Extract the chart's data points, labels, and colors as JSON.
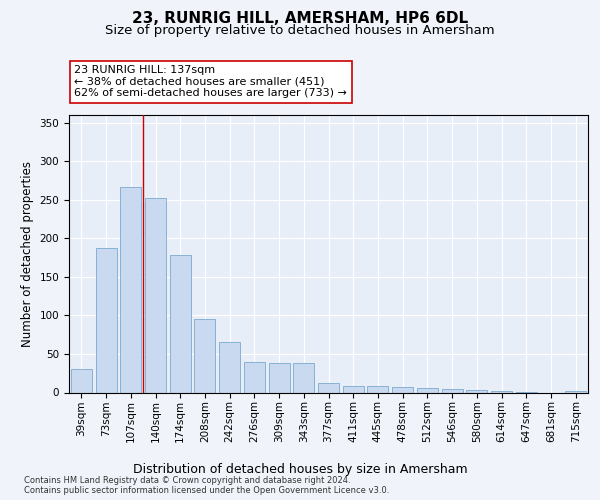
{
  "title": "23, RUNRIG HILL, AMERSHAM, HP6 6DL",
  "subtitle": "Size of property relative to detached houses in Amersham",
  "xlabel": "Distribution of detached houses by size in Amersham",
  "ylabel": "Number of detached properties",
  "bar_labels": [
    "39sqm",
    "73sqm",
    "107sqm",
    "140sqm",
    "174sqm",
    "208sqm",
    "242sqm",
    "276sqm",
    "309sqm",
    "343sqm",
    "377sqm",
    "411sqm",
    "445sqm",
    "478sqm",
    "512sqm",
    "546sqm",
    "580sqm",
    "614sqm",
    "647sqm",
    "681sqm",
    "715sqm"
  ],
  "bar_values": [
    30,
    187,
    267,
    252,
    178,
    95,
    65,
    39,
    38,
    38,
    12,
    9,
    9,
    7,
    6,
    5,
    3,
    2,
    1,
    0,
    2
  ],
  "bar_color": "#c9d9ef",
  "bar_edge_color": "#7aaad0",
  "vline_x": 2.5,
  "vline_color": "#cc0000",
  "annotation_text": "23 RUNRIG HILL: 137sqm\n← 38% of detached houses are smaller (451)\n62% of semi-detached houses are larger (733) →",
  "annotation_box_color": "#ffffff",
  "annotation_box_edge": "#cc0000",
  "ylim": [
    0,
    360
  ],
  "yticks": [
    0,
    50,
    100,
    150,
    200,
    250,
    300,
    350
  ],
  "title_fontsize": 11,
  "subtitle_fontsize": 9.5,
  "xlabel_fontsize": 9,
  "ylabel_fontsize": 8.5,
  "tick_fontsize": 7.5,
  "annotation_fontsize": 8,
  "footer_text": "Contains HM Land Registry data © Crown copyright and database right 2024.\nContains public sector information licensed under the Open Government Licence v3.0.",
  "bg_color": "#f0f4fa",
  "plot_bg_color": "#e8eef8"
}
